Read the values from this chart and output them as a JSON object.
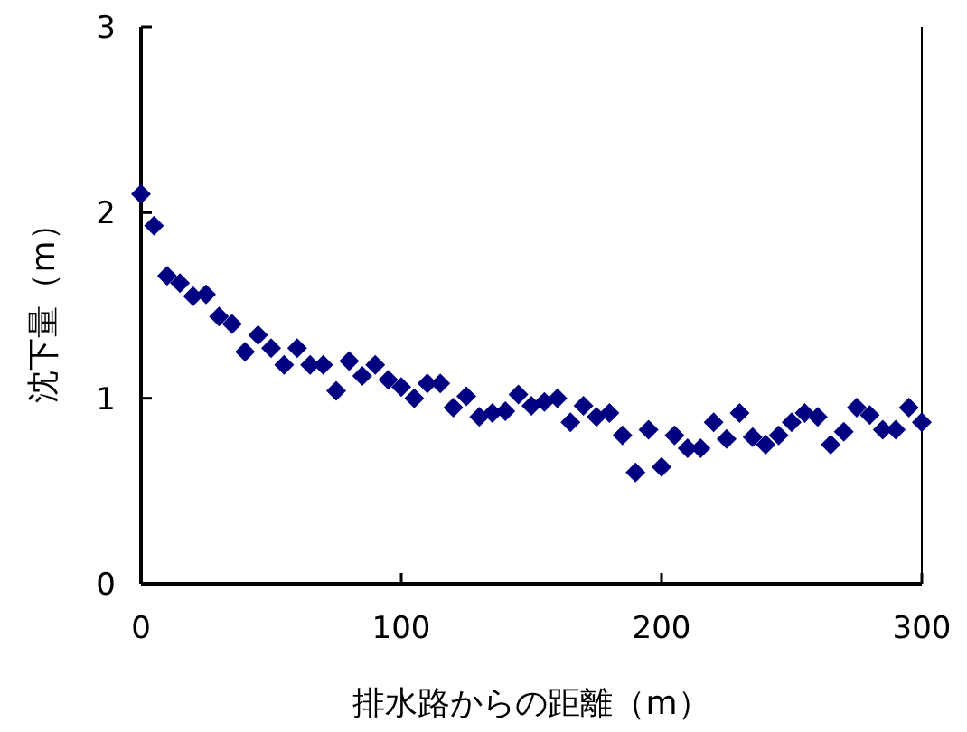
{
  "chart_data": {
    "type": "scatter",
    "xlabel": "排水路からの距離（m）",
    "ylabel": "沈下量（m）",
    "marker": "diamond",
    "x": [
      0,
      5,
      10,
      15,
      20,
      25,
      30,
      35,
      40,
      45,
      50,
      55,
      60,
      65,
      70,
      75,
      80,
      85,
      90,
      95,
      100,
      105,
      110,
      115,
      120,
      125,
      130,
      135,
      140,
      145,
      150,
      155,
      160,
      165,
      170,
      175,
      180,
      185,
      190,
      195,
      200,
      205,
      210,
      215,
      220,
      225,
      230,
      235,
      240,
      245,
      250,
      255,
      260,
      265,
      270,
      275,
      280,
      285,
      290,
      295,
      300
    ],
    "series": [
      {
        "color": "#000080",
        "values": [
          2.1,
          1.93,
          1.66,
          1.62,
          1.55,
          1.56,
          1.44,
          1.4,
          1.25,
          1.34,
          1.27,
          1.18,
          1.27,
          1.18,
          1.18,
          1.04,
          1.2,
          1.12,
          1.18,
          1.1,
          1.06,
          1.0,
          1.08,
          1.08,
          0.95,
          1.01,
          0.9,
          0.92,
          0.93,
          1.02,
          0.96,
          0.98,
          1.0,
          0.87,
          0.96,
          0.9,
          0.92,
          0.8,
          0.6,
          0.83,
          0.63,
          0.8,
          0.73,
          0.73,
          0.87,
          0.78,
          0.92,
          0.79,
          0.75,
          0.8,
          0.87,
          0.92,
          0.9,
          0.75,
          0.82,
          0.95,
          0.91,
          0.83,
          0.83,
          0.95,
          0.87
        ]
      }
    ],
    "xlim": [
      0,
      300
    ],
    "xticks": [
      0,
      100,
      200,
      300
    ],
    "ylim": [
      0,
      3
    ],
    "yticks": [
      0,
      1,
      2,
      3
    ]
  }
}
